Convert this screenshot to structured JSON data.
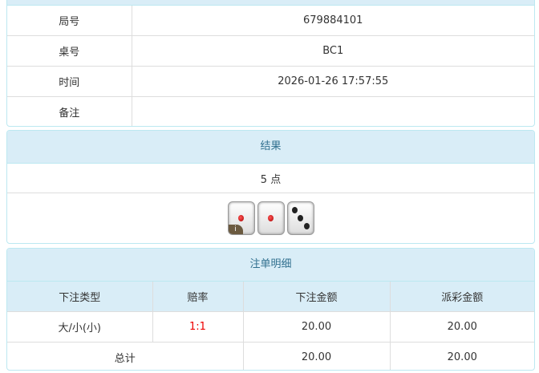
{
  "info": {
    "rows": [
      {
        "label": "局号",
        "value": "679884101"
      },
      {
        "label": "桌号",
        "value": "BC1"
      },
      {
        "label": "时间",
        "value": "2026-01-26 17:57:55"
      },
      {
        "label": "备注",
        "value": ""
      }
    ]
  },
  "result": {
    "title": "结果",
    "points": "5 点",
    "dice": [
      1,
      1,
      3
    ],
    "info_badge": "i"
  },
  "bets": {
    "title": "注单明细",
    "headers": [
      "下注类型",
      "赔率",
      "下注金额",
      "派彩金额"
    ],
    "rows": [
      {
        "type": "大/小(小)",
        "odds": "1:1",
        "amount": "20.00",
        "payout": "20.00"
      }
    ],
    "total": {
      "label": "总计",
      "amount": "20.00",
      "payout": "20.00"
    }
  },
  "colors": {
    "header_bg": "#d9edf7",
    "header_text": "#31708f",
    "odds": "#e00000"
  }
}
